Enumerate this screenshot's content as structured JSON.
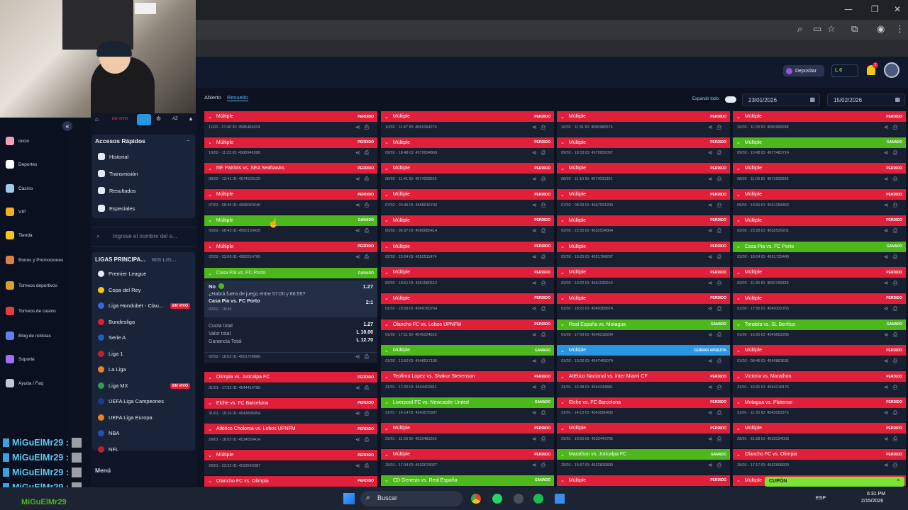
{
  "header": {
    "deposit_label": "Depositar",
    "balance": "L 0",
    "notif_count": "2"
  },
  "tabs": {
    "open": "Abierto",
    "resolved": "Resuelto"
  },
  "filters": {
    "expand_label": "Expandir todo",
    "date_from": "23/01/2026",
    "date_to": "15/02/2026"
  },
  "left_nav": [
    {
      "label": "Inicio",
      "icon": "home-icon",
      "color": "#f0a0b0"
    },
    {
      "label": "Deportes",
      "icon": "ball-icon",
      "color": "#ffffff"
    },
    {
      "label": "Casino",
      "icon": "cards-icon",
      "color": "#9ecbe8"
    },
    {
      "label": "VIP",
      "icon": "crown-icon",
      "color": "#f0b020"
    },
    {
      "label": "Tienda",
      "icon": "coin-icon",
      "color": "#f5c518"
    },
    {
      "label": "Bonos y Promociones",
      "icon": "gift-icon",
      "color": "#e08040"
    },
    {
      "label": "Torneos deportivos",
      "icon": "trophy-icon",
      "color": "#d8a030"
    },
    {
      "label": "Torneos de casino",
      "icon": "chip-icon",
      "color": "#e04040"
    },
    {
      "label": "Blog de noticias",
      "icon": "blog-icon",
      "color": "#6080f0"
    },
    {
      "label": "Soporte",
      "icon": "support-icon",
      "color": "#a070f0"
    },
    {
      "label": "Ayuda / Faq",
      "icon": "help-icon",
      "color": "#c0c8d8"
    }
  ],
  "sidebar": {
    "top_tabs": [
      "EN VIVO",
      "AZ"
    ],
    "quick_title": "Accesos Rápidos",
    "quick": [
      "Historial",
      "Transmisión",
      "Resultados",
      "Especiales"
    ],
    "search_placeholder": "Ingrese el nombre del e...",
    "leagues_title": "LIGAS PRINCIPA...",
    "leagues_tab2": "MIS LIG...",
    "leagues": [
      {
        "name": "Premier League",
        "live": ""
      },
      {
        "name": "Copa del Rey",
        "live": ""
      },
      {
        "name": "Liga Hondubet - Clau...",
        "live": "EN VIVO"
      },
      {
        "name": "Bundesliga",
        "live": ""
      },
      {
        "name": "Serie A",
        "live": ""
      },
      {
        "name": "Liga 1",
        "live": ""
      },
      {
        "name": "La Liga",
        "live": ""
      },
      {
        "name": "Liga MX",
        "live": "EN VIVO"
      },
      {
        "name": "UEFA Liga Campeones",
        "live": ""
      },
      {
        "name": "UEFA Liga Europa",
        "live": ""
      },
      {
        "name": "NBA",
        "live": ""
      },
      {
        "name": "NFL",
        "live": ""
      }
    ],
    "menu_title": "Menú"
  },
  "chat": {
    "user": "MiGuElMr29 :",
    "taskbar_user": "MiGuElMr29"
  },
  "detail": {
    "title": "Casa Pia vs. FC Porto",
    "status": "GANADO",
    "pick": "No",
    "pick_odds": "1.27",
    "question": "¿Habrá fuera de juego entre 57:00 y 66:59?",
    "match": "Casa Pia vs. FC Porto",
    "match_odds": "2:1",
    "match_date": "02/02 - 18:45",
    "cuota_label": "Cuota total",
    "cuota": "1.27",
    "valor_label": "Valor total",
    "valor": "L 10.00",
    "ganancia_label": "Ganancia Total",
    "ganancia": "L 12.70",
    "footer": "02/02 - 18:03   ID: 4551720886"
  },
  "columns": [
    [
      {
        "t": "Múltiple",
        "s": "PERDIDO",
        "c": "red",
        "m": "11/02 - 17:40   ID: 4585484024"
      },
      {
        "t": "Múltiple",
        "s": "PERDIDO",
        "c": "red",
        "m": "10/02 - 11:23   ID: 4580946386"
      },
      {
        "t": "NE Patriots vs. SEA Seahawks",
        "s": "PERDIDO",
        "c": "red",
        "m": "08/02 - 12:41   ID: 4574529125"
      },
      {
        "t": "Múltiple",
        "s": "PERDIDO",
        "c": "red",
        "m": "07/02 - 08:49   ID: 4568043240"
      },
      {
        "t": "Múltiple",
        "s": "GANADO",
        "c": "green",
        "m": "05/02 - 08:43   ID: 4560103435"
      },
      {
        "t": "Múltiple",
        "s": "PERDIDO",
        "c": "red",
        "m": "02/02 - 23:08   ID: 4552514760"
      },
      null,
      {
        "t": "Olimpia vs. Juticalpa FC",
        "s": "PERDIDO",
        "c": "red",
        "m": "31/01 - 17:22   ID: 4544414780"
      },
      {
        "t": "Elche vs. FC Barcelona",
        "s": "PERDIDO",
        "c": "red",
        "m": "31/01 - 15:16   ID: 4543806054"
      },
      {
        "t": "Atlético Choloma vs. Lobos UPNFM",
        "s": "PERDIDO",
        "c": "red",
        "m": "29/01 - 18:03   ID: 4534559414"
      },
      {
        "t": "Múltiple",
        "s": "PERDIDO",
        "c": "red",
        "m": "28/01 - 22:32   ID: 4533540387"
      },
      {
        "t": "Olancho FC vs. Olimpia",
        "s": "PERDIDO",
        "c": "red",
        "m": ""
      }
    ],
    [
      {
        "t": "Múltiple",
        "s": "PERDIDO",
        "c": "red",
        "m": "10/02 - 11:47   ID: 4581054270"
      },
      {
        "t": "Múltiple",
        "s": "PERDIDO",
        "c": "red",
        "m": "09/02 - 18:48   ID: 4579094869"
      },
      {
        "t": "Múltiple",
        "s": "PERDIDO",
        "c": "red",
        "m": "08/02 - 11:41   ID: 4574209552"
      },
      {
        "t": "Múltiple",
        "s": "PERDIDO",
        "c": "red",
        "m": "07/02 - 03:45   ID: 4568015743"
      },
      {
        "t": "Múltiple",
        "s": "PERDIDO",
        "c": "red",
        "m": "05/02 - 06:37   ID: 4560085414"
      },
      {
        "t": "Múltiple",
        "s": "PERDIDO",
        "c": "red",
        "m": "02/02 - 23:04   ID: 4552511474"
      },
      {
        "t": "Múltiple",
        "s": "PERDIDO",
        "c": "red",
        "m": "02/02 - 18:51   ID: 4551580512"
      },
      {
        "t": "Múltiple",
        "s": "PERDIDO",
        "c": "red",
        "m": "01/02 - 23:09   ID: 4549760764"
      },
      {
        "t": "Olancho FC vs. Lobos UPNFM",
        "s": "PERDIDO",
        "c": "red",
        "m": "01/02 - 17:11   ID: 4549224523"
      },
      {
        "t": "Múltiple",
        "s": "GANADO",
        "c": "green",
        "m": "01/02 - 13:50   ID: 4548517156"
      },
      {
        "t": "Teofimo Lopez vs. Shakur Stevenson",
        "s": "PERDIDO",
        "c": "red",
        "m": "31/01 - 17:20   ID: 4544402811"
      },
      {
        "t": "Liverpool FC vs. Newcastle United",
        "s": "GANADO",
        "c": "green",
        "m": "31/01 - 14:14   ID: 4543575907"
      },
      {
        "t": "Múltiple",
        "s": "PERDIDO",
        "c": "red",
        "m": "29/01 - 11:03   ID: 4533481250"
      },
      {
        "t": "Múltiple",
        "s": "PERDIDO",
        "c": "red",
        "m": "28/01 - 17:34   ID: 4532678027"
      },
      {
        "t": "CD Genesis vs. Real España",
        "s": "GANADO",
        "c": "green",
        "m": ""
      }
    ],
    [
      {
        "t": "Múltiple",
        "s": "PERDIDO",
        "c": "red",
        "m": "10/02 - 11:31   ID: 4580980576"
      },
      {
        "t": "Múltiple",
        "s": "PERDIDO",
        "c": "red",
        "m": "09/02 - 18:33   ID: 4579052057"
      },
      {
        "t": "Múltiple",
        "s": "PERDIDO",
        "c": "red",
        "m": "08/02 - 11:10   ID: 4574031301"
      },
      {
        "t": "Múltiple",
        "s": "PERDIDO",
        "c": "red",
        "m": "07/02 - 08:33   ID: 4567931209"
      },
      {
        "t": "Múltiple",
        "s": "PERDIDO",
        "c": "red",
        "m": "02/02 - 23:35   ID: 4552534364"
      },
      {
        "t": "Múltiple",
        "s": "PERDIDO",
        "c": "red",
        "m": "02/02 - 19:25   ID: 4551784297"
      },
      {
        "t": "Múltiple",
        "s": "PERDIDO",
        "c": "red",
        "m": "02/02 - 13:22   ID: 4551190010"
      },
      {
        "t": "Múltiple",
        "s": "PERDIDO",
        "c": "red",
        "m": "01/02 - 18:21   ID: 4549389874"
      },
      {
        "t": "Real España vs. Motagua",
        "s": "GANADO",
        "c": "green",
        "m": "01/02 - 17:09   ID: 4549218204"
      },
      {
        "t": "Múltiple",
        "s": "CERRAR APUESTA",
        "c": "blue",
        "m": "01/02 - 10:26   ID: 4547469074"
      },
      {
        "t": "Atlético Nacional vs. Inter Miami CF",
        "s": "PERDIDO",
        "c": "red",
        "m": "31/01 - 16:38   ID: 4544244881"
      },
      {
        "t": "Elche vs. FC Barcelona",
        "s": "PERDIDO",
        "c": "red",
        "m": "31/01 - 14:12   ID: 4543566435"
      },
      {
        "t": "Múltiple",
        "s": "PERDIDO",
        "c": "red",
        "m": "29/01 - 10:50   ID: 4533443795"
      },
      {
        "t": "Marathon vs. Juticalpa FC",
        "s": "GANADO",
        "c": "green",
        "m": "28/01 - 15:57   ID: 4532830830"
      },
      {
        "t": "Múltiple",
        "s": "PERDIDO",
        "c": "red",
        "m": ""
      }
    ],
    [
      {
        "t": "Múltiple",
        "s": "PERDIDO",
        "c": "red",
        "m": "10/02 - 11:28   ID: 4580966038"
      },
      {
        "t": "Múltiple",
        "s": "GANADO",
        "c": "green",
        "m": "09/02 - 10:48   ID: 4577483714"
      },
      {
        "t": "Múltiple",
        "s": "PERDIDO",
        "c": "red",
        "m": "08/02 - 11:03   ID: 4573992936"
      },
      {
        "t": "Múltiple",
        "s": "PERDIDO",
        "c": "red",
        "m": "05/02 - 13:56   ID: 4561258452"
      },
      {
        "t": "Múltiple",
        "s": "PERDIDO",
        "c": "red",
        "m": "02/02 - 23:28   ID: 4552529201"
      },
      {
        "t": "Casa Pia vs. FC Porto",
        "s": "GANADO",
        "c": "green",
        "m": "02/02 - 18:04   ID: 4551725449"
      },
      {
        "t": "Múltiple",
        "s": "PERDIDO",
        "c": "red",
        "m": "02/02 - 11:30   ID: 4550769333"
      },
      {
        "t": "Múltiple",
        "s": "PERDIDO",
        "c": "red",
        "m": "01/02 - 17:56   ID: 4549332765"
      },
      {
        "t": "Tondela vs. SL Benfica",
        "s": "GANADO",
        "c": "green",
        "m": "01/02 - 16:25   ID: 4549052295"
      },
      {
        "t": "Múltiple",
        "s": "PERDIDO",
        "c": "red",
        "m": "01/02 - 08:46   ID: 4546863631"
      },
      {
        "t": "Victoria vs. Marathon",
        "s": "PERDIDO",
        "c": "red",
        "m": "31/01 - 16:31   ID: 4544218176"
      },
      {
        "t": "Motagua vs. Platense",
        "s": "PERDIDO",
        "c": "red",
        "m": "31/01 - 11:33   ID: 4543583376"
      },
      {
        "t": "Múltiple",
        "s": "PERDIDO",
        "c": "red",
        "m": "28/01 - 21:58   ID: 4533334003"
      },
      {
        "t": "Olancho FC vs. Olimpia",
        "s": "PERDIDO",
        "c": "red",
        "m": "28/01 - 17:17   ID: 4532699920"
      },
      {
        "t": "Múltiple",
        "s": "PERDIDO",
        "c": "red",
        "m": ""
      }
    ]
  ],
  "coupon": "CUPÓN",
  "taskbar": {
    "search": "Buscar",
    "lang": "ESP",
    "time": "6:31 PM",
    "date": "2/15/2026"
  }
}
